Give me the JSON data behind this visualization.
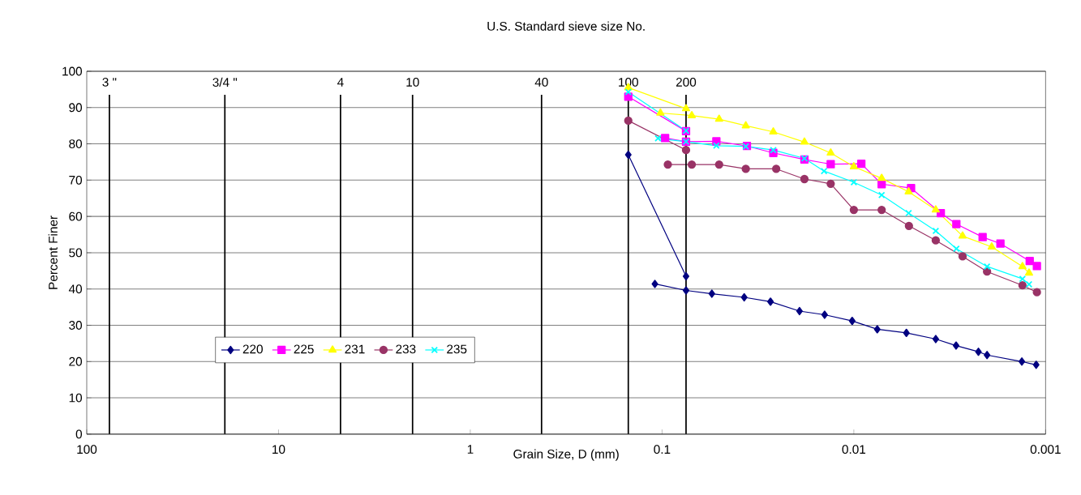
{
  "chart_data": {
    "type": "line",
    "xlabel": "Grain Size, D (mm)",
    "ylabel": "Percent Finer",
    "x2label": "U.S. Standard sieve size No.",
    "log": "x",
    "xlim": [
      100,
      0.001
    ],
    "xticks": [
      100,
      10,
      1,
      0.1,
      0.01,
      0.001
    ],
    "ylim": [
      0,
      100
    ],
    "yticks": [
      0,
      10,
      20,
      30,
      40,
      50,
      60,
      70,
      80,
      90,
      100
    ],
    "grid": "y",
    "legend": "bottom left",
    "ref_lines": [
      {
        "axis": "x",
        "value": 76.2,
        "color": "#000000"
      },
      {
        "axis": "x",
        "value": 19.05,
        "color": "#000000"
      },
      {
        "axis": "x",
        "value": 4.75,
        "color": "#000000"
      },
      {
        "axis": "x",
        "value": 2.0,
        "color": "#000000"
      },
      {
        "axis": "x",
        "value": 0.425,
        "color": "#000000"
      },
      {
        "axis": "x",
        "value": 0.15,
        "color": "#000000"
      },
      {
        "axis": "x",
        "value": 0.075,
        "color": "#000000"
      }
    ],
    "annotations": [
      "3 \"",
      "3/4 \"",
      "4",
      "10",
      "40",
      "100",
      "200"
    ],
    "series": [
      {
        "name": "220",
        "color": "#000080",
        "marker": "diamond",
        "x": [
          0.15,
          0.075,
          null,
          0.109,
          0.075,
          0.055,
          0.0373,
          0.0272,
          0.0192,
          0.0142,
          0.0102,
          0.00755,
          0.00532,
          0.00374,
          0.00293,
          0.00224,
          0.00202,
          0.00133,
          0.00112
        ],
        "values": [
          77,
          43.5,
          null,
          41.4,
          39.6,
          38.7,
          37.7,
          36.5,
          33.9,
          32.9,
          31.2,
          28.9,
          27.9,
          26.2,
          24.4,
          22.7,
          21.8,
          20.0,
          19.1
        ]
      },
      {
        "name": "225",
        "color": "#ff00ff",
        "marker": "square",
        "x": [
          0.15,
          0.075,
          null,
          0.0964,
          0.075,
          0.0521,
          0.0361,
          0.0263,
          0.0181,
          0.0132,
          0.00914,
          0.00716,
          0.00503,
          0.00352,
          0.00292,
          0.00213,
          0.00172,
          0.00121,
          0.00111
        ],
        "values": [
          93,
          83.5,
          null,
          81.6,
          80.6,
          80.7,
          79.4,
          77.5,
          75.7,
          74.4,
          74.5,
          68.9,
          67.8,
          60.9,
          57.9,
          54.3,
          52.5,
          47.7,
          46.3
        ]
      },
      {
        "name": "231",
        "color": "#ffff00",
        "marker": "triangle",
        "x": [
          0.15,
          0.075,
          null,
          0.102,
          0.07,
          0.0504,
          0.0366,
          0.0263,
          0.0181,
          0.0132,
          0.01,
          0.00716,
          0.00518,
          0.00374,
          0.00271,
          0.00191,
          0.00132,
          0.00122
        ],
        "values": [
          95.5,
          89.7,
          null,
          88.5,
          87.8,
          86.8,
          85.0,
          83.3,
          80.5,
          77.5,
          73.7,
          70.5,
          66.8,
          61.8,
          54.6,
          51.6,
          46.2,
          44.4
        ]
      },
      {
        "name": "233",
        "color": "#993366",
        "marker": "circle",
        "x": [
          0.15,
          0.075,
          null,
          0.0933,
          0.07,
          0.0504,
          0.0366,
          0.0254,
          0.0181,
          0.0132,
          0.01,
          0.00716,
          0.00516,
          0.00374,
          0.00271,
          0.00202,
          0.00132,
          0.00111
        ],
        "values": [
          86.4,
          78.3,
          null,
          74.3,
          74.3,
          74.3,
          73.1,
          73.1,
          70.3,
          69.0,
          61.8,
          61.8,
          57.4,
          53.4,
          49.0,
          44.8,
          41.0,
          39.1
        ]
      },
      {
        "name": "235",
        "color": "#00ffff",
        "marker": "cross",
        "x": [
          0.15,
          0.075,
          null,
          0.105,
          0.075,
          0.0521,
          0.0366,
          0.0263,
          0.0181,
          0.0143,
          0.01,
          0.00716,
          0.00518,
          0.00374,
          0.00292,
          0.00202,
          0.00132,
          0.00122
        ],
        "values": [
          94.3,
          83.6,
          null,
          81.5,
          80.6,
          79.5,
          79.3,
          78.3,
          76.0,
          72.5,
          69.4,
          65.9,
          60.9,
          56.0,
          51.1,
          46.2,
          42.8,
          41.3
        ]
      }
    ]
  }
}
